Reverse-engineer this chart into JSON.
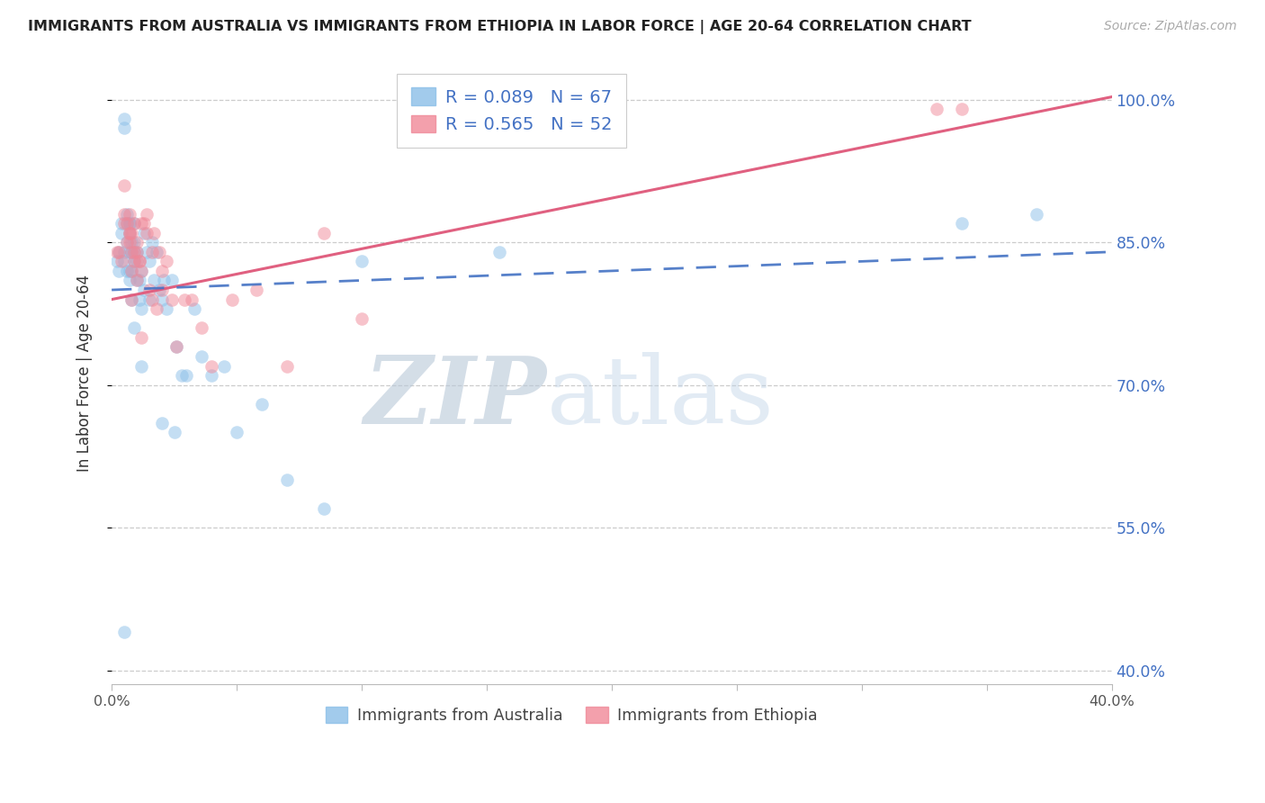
{
  "title": "IMMIGRANTS FROM AUSTRALIA VS IMMIGRANTS FROM ETHIOPIA IN LABOR FORCE | AGE 20-64 CORRELATION CHART",
  "source": "Source: ZipAtlas.com",
  "ylabel": "In Labor Force | Age 20-64",
  "ytick_labels": [
    "100.0%",
    "85.0%",
    "70.0%",
    "55.0%",
    "40.0%"
  ],
  "ytick_values": [
    1.0,
    0.85,
    0.7,
    0.55,
    0.4
  ],
  "xlim": [
    0.0,
    0.4
  ],
  "ylim": [
    0.385,
    1.04
  ],
  "grid_color": "#cccccc",
  "australia_color": "#8bbfe8",
  "ethiopia_color": "#f08898",
  "aus_line_color": "#4472c4",
  "eth_line_color": "#e06080",
  "legend_text_color": "#4472c4",
  "right_axis_color": "#4472c4",
  "aus_line_x": [
    0.0,
    0.4
  ],
  "aus_line_y": [
    0.8,
    0.84
  ],
  "eth_line_x": [
    0.0,
    0.4
  ],
  "eth_line_y": [
    0.79,
    1.003
  ],
  "aus_scatter_x": [
    0.002,
    0.003,
    0.003,
    0.004,
    0.004,
    0.005,
    0.005,
    0.005,
    0.006,
    0.006,
    0.006,
    0.006,
    0.007,
    0.007,
    0.007,
    0.007,
    0.007,
    0.008,
    0.008,
    0.008,
    0.008,
    0.009,
    0.009,
    0.009,
    0.009,
    0.01,
    0.01,
    0.01,
    0.011,
    0.011,
    0.012,
    0.012,
    0.013,
    0.013,
    0.014,
    0.015,
    0.015,
    0.016,
    0.017,
    0.018,
    0.019,
    0.02,
    0.021,
    0.022,
    0.024,
    0.026,
    0.028,
    0.03,
    0.033,
    0.036,
    0.04,
    0.045,
    0.05,
    0.06,
    0.07,
    0.085,
    0.1,
    0.005,
    0.007,
    0.009,
    0.012,
    0.02,
    0.025,
    0.155,
    0.005,
    0.34,
    0.37
  ],
  "aus_scatter_y": [
    0.83,
    0.84,
    0.82,
    0.86,
    0.87,
    0.98,
    0.97,
    0.83,
    0.85,
    0.88,
    0.82,
    0.87,
    0.86,
    0.87,
    0.84,
    0.81,
    0.87,
    0.85,
    0.82,
    0.84,
    0.79,
    0.87,
    0.85,
    0.84,
    0.83,
    0.84,
    0.81,
    0.83,
    0.81,
    0.79,
    0.78,
    0.82,
    0.86,
    0.8,
    0.84,
    0.83,
    0.79,
    0.85,
    0.81,
    0.84,
    0.8,
    0.79,
    0.81,
    0.78,
    0.81,
    0.74,
    0.71,
    0.71,
    0.78,
    0.73,
    0.71,
    0.72,
    0.65,
    0.68,
    0.6,
    0.57,
    0.83,
    0.84,
    0.82,
    0.76,
    0.72,
    0.66,
    0.65,
    0.84,
    0.44,
    0.87,
    0.88
  ],
  "eth_scatter_x": [
    0.002,
    0.003,
    0.004,
    0.005,
    0.005,
    0.006,
    0.006,
    0.007,
    0.007,
    0.007,
    0.008,
    0.008,
    0.008,
    0.009,
    0.009,
    0.009,
    0.01,
    0.01,
    0.011,
    0.011,
    0.012,
    0.012,
    0.013,
    0.014,
    0.015,
    0.016,
    0.017,
    0.018,
    0.019,
    0.02,
    0.022,
    0.024,
    0.026,
    0.029,
    0.032,
    0.036,
    0.04,
    0.048,
    0.058,
    0.07,
    0.085,
    0.1,
    0.005,
    0.007,
    0.008,
    0.01,
    0.012,
    0.014,
    0.016,
    0.02,
    0.33,
    0.34
  ],
  "eth_scatter_y": [
    0.84,
    0.84,
    0.83,
    0.88,
    0.87,
    0.87,
    0.85,
    0.85,
    0.86,
    0.86,
    0.84,
    0.82,
    0.86,
    0.84,
    0.87,
    0.83,
    0.85,
    0.84,
    0.83,
    0.83,
    0.82,
    0.87,
    0.87,
    0.86,
    0.8,
    0.79,
    0.86,
    0.78,
    0.84,
    0.82,
    0.83,
    0.79,
    0.74,
    0.79,
    0.79,
    0.76,
    0.72,
    0.79,
    0.8,
    0.72,
    0.86,
    0.77,
    0.91,
    0.88,
    0.79,
    0.81,
    0.75,
    0.88,
    0.84,
    0.8,
    0.99,
    0.99
  ]
}
